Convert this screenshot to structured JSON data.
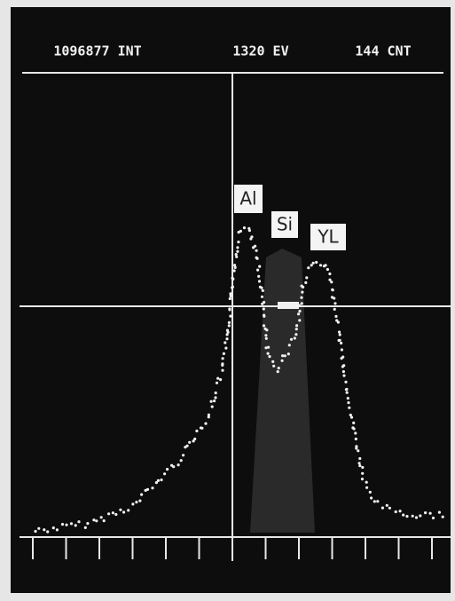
{
  "header": {
    "integral": "1096877 INT",
    "energy": "1320 EV",
    "counts": "144 CNT"
  },
  "peak_labels": [
    "Al",
    "Si",
    "YL"
  ]
}
